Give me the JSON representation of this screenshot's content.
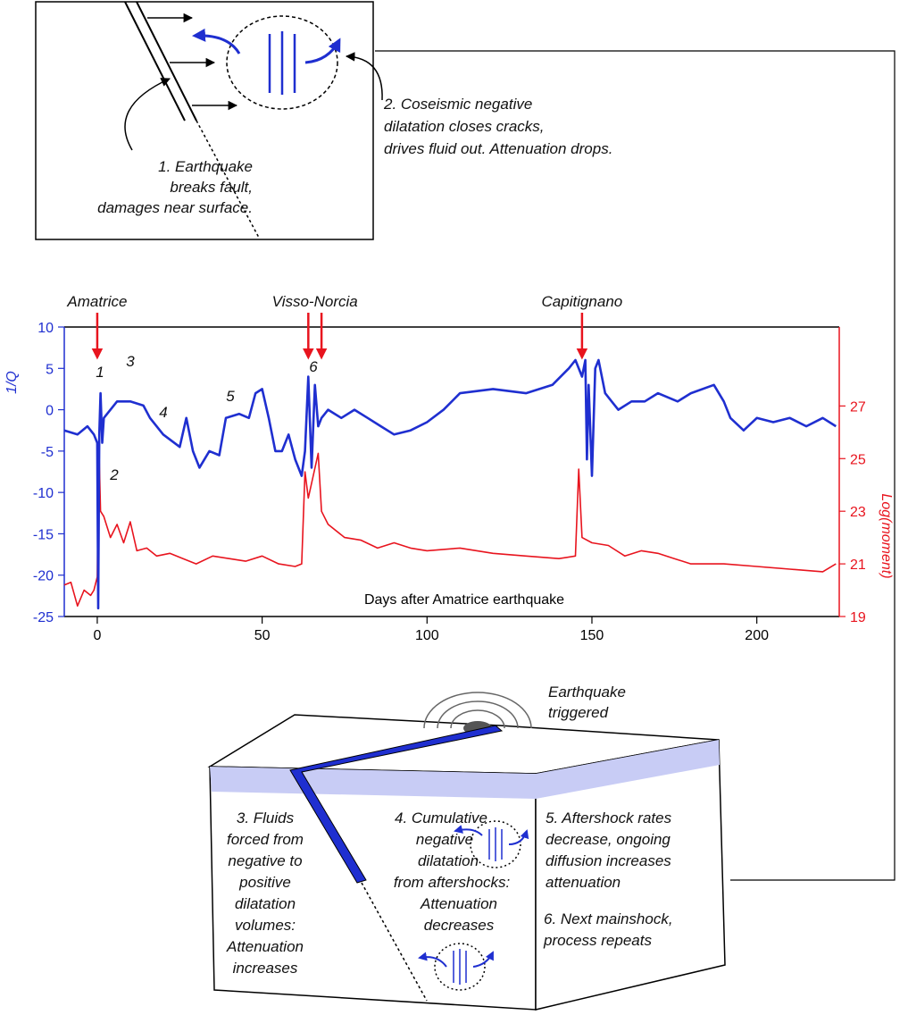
{
  "chart_data": {
    "type": "line",
    "xlabel": "Days after Amatrice earthquake",
    "ylabel": "1/Q",
    "y2label": "Log(moment)",
    "xlim": [
      -10,
      225
    ],
    "xticks": [
      0,
      50,
      100,
      150,
      200
    ],
    "ylim": [
      -25,
      10
    ],
    "yticks": [
      -25,
      -20,
      -15,
      -10,
      -5,
      0,
      5,
      10
    ],
    "y2lim": [
      19,
      30
    ],
    "y2ticks": [
      19,
      21,
      23,
      25,
      27
    ],
    "ycolor": "#1f2fd0",
    "y2color": "#e8141e",
    "series": [
      {
        "name": "1/Q",
        "color": "#1f2fd0",
        "x": [
          -10,
          -6,
          -3,
          -1,
          0,
          0.3,
          0.6,
          1,
          1.5,
          2,
          4,
          6,
          10,
          14,
          16,
          20,
          25,
          27,
          29,
          31,
          34,
          37,
          39,
          43,
          46,
          48,
          50,
          52,
          54,
          56,
          58,
          60,
          62,
          63,
          64,
          65,
          66,
          67,
          68,
          70,
          74,
          78,
          82,
          86,
          90,
          95,
          100,
          105,
          110,
          120,
          130,
          138,
          143,
          145,
          147,
          148,
          148.5,
          149,
          150,
          151,
          152,
          154,
          156,
          158,
          162,
          166,
          170,
          176,
          180,
          187,
          190,
          192,
          196,
          200,
          205,
          210,
          215,
          220,
          224
        ],
        "values": [
          -2.5,
          -3,
          -2,
          -3,
          -4,
          -24,
          -3,
          2,
          -4,
          -1,
          0,
          1,
          1,
          0.5,
          -1,
          -3,
          -4.5,
          -1,
          -5,
          -7,
          -5,
          -5.5,
          -1,
          -0.5,
          -1,
          2,
          2.5,
          -1,
          -5,
          -5,
          -3,
          -6,
          -8,
          -5,
          4,
          -7,
          3,
          -2,
          -1,
          0,
          -1,
          0,
          -1,
          -2,
          -3,
          -2.5,
          -1.5,
          0,
          2,
          2.5,
          2,
          3,
          5,
          6,
          4,
          6,
          -6,
          3,
          -8,
          5,
          6,
          2,
          1,
          0,
          1,
          1,
          2,
          1,
          2,
          3,
          1,
          -1,
          -2.5,
          -1,
          -1.5,
          -1,
          -2,
          -1,
          -2
        ]
      },
      {
        "name": "Log(moment)",
        "color": "#e8141e",
        "axis": "y2",
        "x": [
          -10,
          -8,
          -6,
          -4,
          -2,
          -1,
          0,
          0.5,
          1,
          2,
          4,
          6,
          8,
          10,
          12,
          15,
          18,
          22,
          26,
          30,
          35,
          40,
          45,
          50,
          55,
          60,
          62,
          63,
          64,
          67,
          68,
          70,
          75,
          80,
          85,
          90,
          95,
          100,
          110,
          120,
          130,
          140,
          145,
          146,
          147,
          150,
          155,
          160,
          165,
          170,
          175,
          180,
          190,
          200,
          210,
          220,
          224
        ],
        "values": [
          20.2,
          20.3,
          19.4,
          20,
          19.8,
          20,
          20.5,
          25.5,
          23,
          22.8,
          22,
          22.5,
          21.8,
          22.6,
          21.5,
          21.6,
          21.3,
          21.4,
          21.2,
          21,
          21.3,
          21.2,
          21.1,
          21.3,
          21,
          20.9,
          21,
          24.5,
          23.5,
          25.2,
          23,
          22.5,
          22,
          21.9,
          21.6,
          21.8,
          21.6,
          21.5,
          21.6,
          21.4,
          21.3,
          21.2,
          21.3,
          24.6,
          22,
          21.8,
          21.7,
          21.3,
          21.5,
          21.4,
          21.2,
          21,
          21,
          20.9,
          20.8,
          20.7,
          21
        ]
      }
    ],
    "events": [
      {
        "label": "Amatrice",
        "days": [
          0
        ]
      },
      {
        "label": "Visso-Norcia",
        "days": [
          64,
          68
        ]
      },
      {
        "label": "Capitignano",
        "days": [
          147
        ]
      }
    ],
    "annotations": [
      "1",
      "2",
      "3",
      "4",
      "5",
      "6"
    ]
  },
  "top_panel": {
    "label_1": [
      "1. Earthquake",
      "breaks fault,",
      "damages near surface."
    ],
    "label_2": [
      "2. Coseismic negative",
      "dilatation closes cracks,",
      "drives fluid out. Attenuation drops."
    ]
  },
  "bottom_panel": {
    "triggered": [
      "Earthquake",
      "triggered"
    ],
    "label_3": [
      "3. Fluids",
      "forced from",
      "negative to",
      "positive",
      "dilatation",
      "volumes:",
      "Attenuation",
      "increases"
    ],
    "label_4": [
      "4. Cumulative",
      "negative",
      "dilatation",
      "from aftershocks:",
      "Attenuation",
      "decreases"
    ],
    "label_5": [
      "5. Aftershock rates",
      "decrease, ongoing",
      "diffusion increases",
      "attenuation"
    ],
    "label_6": [
      "6. Next mainshock,",
      "process repeats"
    ]
  }
}
